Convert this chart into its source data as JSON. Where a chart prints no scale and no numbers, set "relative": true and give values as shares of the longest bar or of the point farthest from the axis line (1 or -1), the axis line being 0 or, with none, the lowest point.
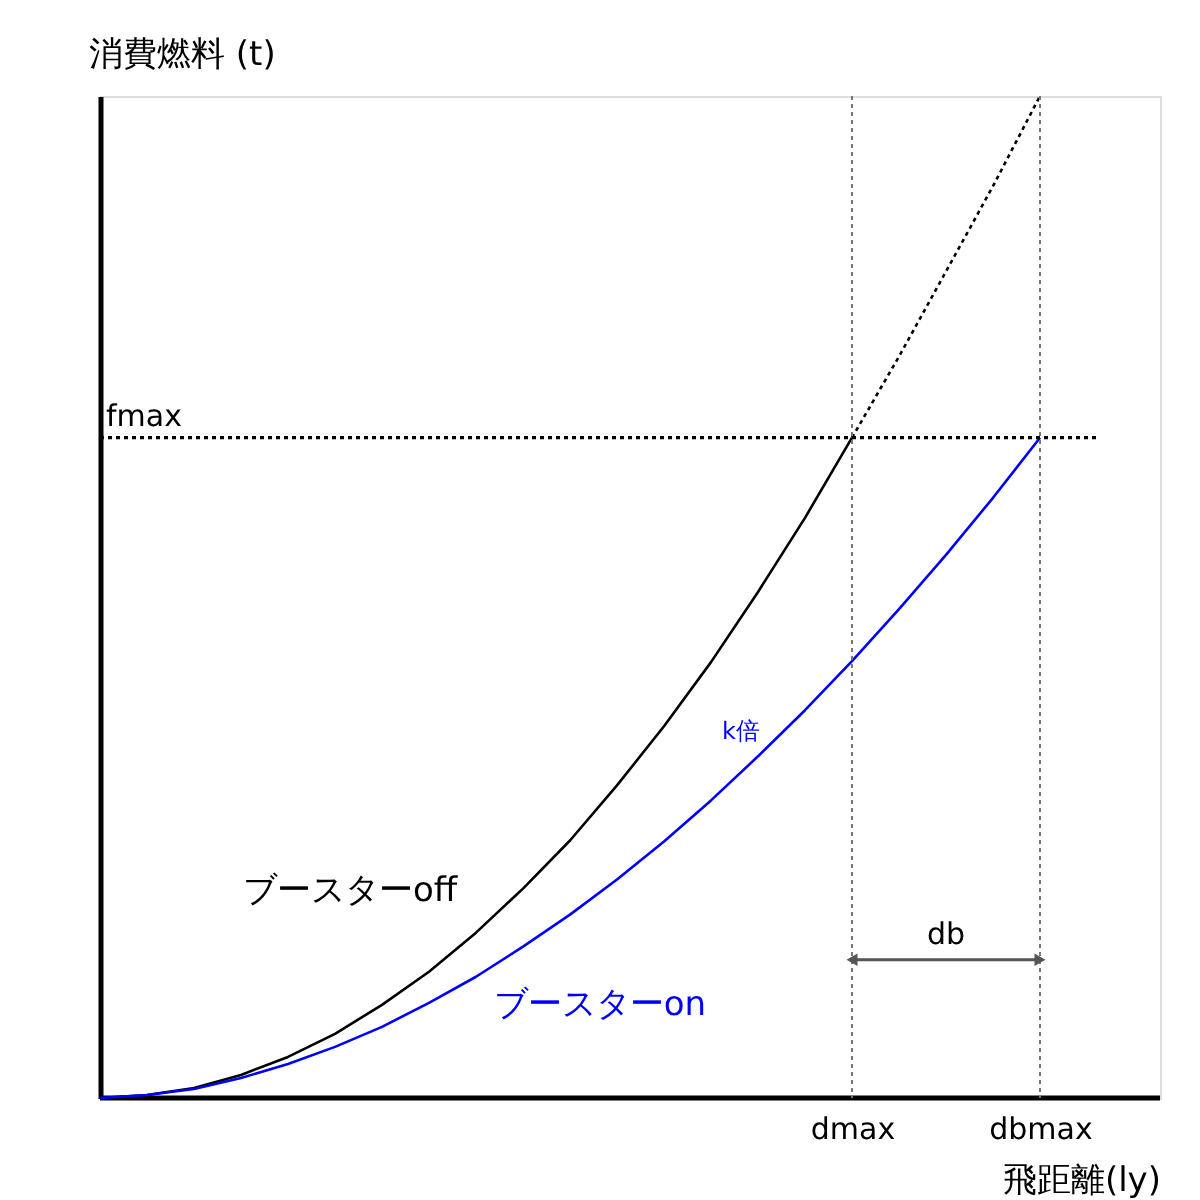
{
  "chart_data": {
    "type": "line",
    "relative": true,
    "xlabel": "飛距離(ly)",
    "ylabel": "消費燃料 (t)",
    "grid": false,
    "legend": false,
    "line_style": "solid",
    "marker": "none",
    "categories": [
      null,
      null,
      null,
      null,
      null,
      null,
      null,
      null,
      null,
      null,
      null,
      null,
      null,
      null,
      null,
      null,
      "dmax",
      null,
      null,
      null,
      "dbmax"
    ],
    "series": [
      {
        "name": "ブースターoff",
        "color": "#000000",
        "values": [
          0,
          0.003,
          0.01,
          0.023,
          0.041,
          0.064,
          0.093,
          0.126,
          0.165,
          0.209,
          0.257,
          0.312,
          0.371,
          0.435,
          0.505,
          0.579,
          0.659,
          null,
          null,
          null,
          null
        ]
      },
      {
        "color": "#000000",
        "line_style": "dotted",
        "values": [
          null,
          null,
          null,
          null,
          null,
          null,
          null,
          null,
          null,
          null,
          null,
          null,
          null,
          null,
          null,
          null,
          0.659,
          0.74,
          0.825,
          0.91,
          1.0
        ]
      },
      {
        "name": "ブースターon",
        "color": "#0000ff",
        "values": [
          0,
          0.003,
          0.009,
          0.02,
          0.034,
          0.051,
          0.071,
          0.095,
          0.121,
          0.151,
          0.183,
          0.218,
          0.256,
          0.297,
          0.341,
          0.387,
          0.436,
          0.488,
          0.542,
          0.599,
          0.659
        ]
      }
    ],
    "ref_lines": [
      {
        "axis": "y",
        "value": 0.659,
        "label": "fmax",
        "line_style": "dotted",
        "color": "#000000"
      },
      {
        "axis": "x",
        "value": "dmax",
        "line_style": "dotted",
        "color": "#777777"
      },
      {
        "axis": "x",
        "value": "dbmax",
        "line_style": "dotted",
        "color": "#777777"
      }
    ],
    "annotations": [
      "k倍",
      "db"
    ]
  }
}
